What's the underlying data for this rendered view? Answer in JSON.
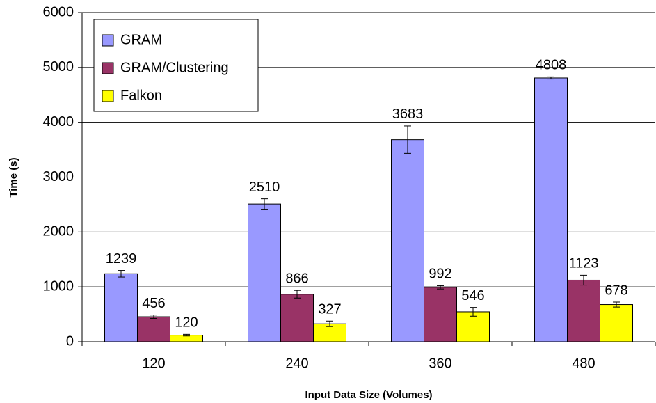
{
  "chart_data": {
    "type": "bar",
    "xlabel": "Input Data Size (Volumes)",
    "ylabel": "Time (s)",
    "categories": [
      "120",
      "240",
      "360",
      "480"
    ],
    "series": [
      {
        "name": "GRAM",
        "color": "#9999ff",
        "values": [
          1239,
          2510,
          3683,
          4808
        ],
        "errors": [
          60,
          95,
          250,
          20
        ]
      },
      {
        "name": "GRAM/Clustering",
        "color": "#993366",
        "values": [
          456,
          866,
          992,
          1123
        ],
        "errors": [
          30,
          70,
          30,
          90
        ]
      },
      {
        "name": "Falkon",
        "color": "#ffff00",
        "values": [
          120,
          327,
          546,
          678
        ],
        "errors": [
          15,
          50,
          80,
          45
        ]
      }
    ],
    "ylim": [
      0,
      6000
    ],
    "yticks": [
      0,
      1000,
      2000,
      3000,
      4000,
      5000,
      6000
    ],
    "grid": true,
    "legend": "upper left"
  }
}
